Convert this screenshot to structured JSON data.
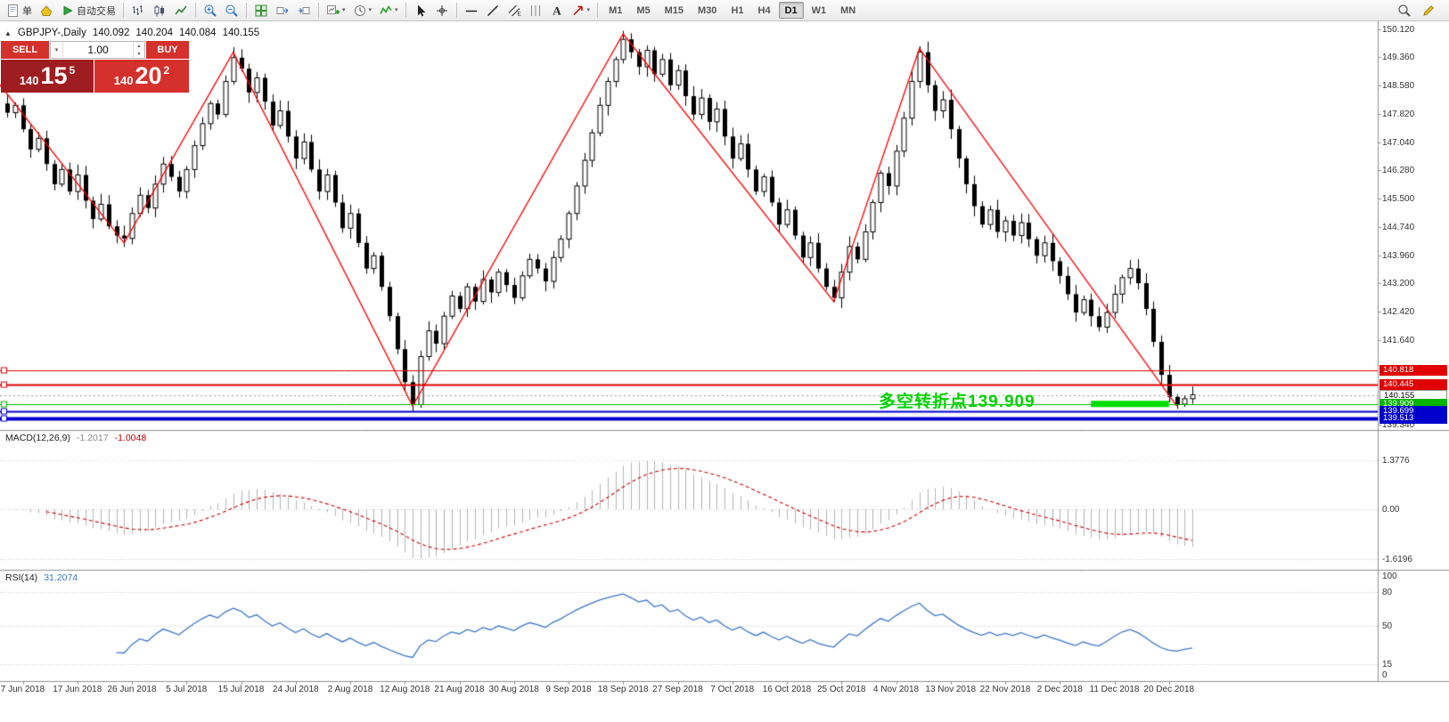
{
  "toolbar": {
    "caret_char": "▾",
    "groups": [
      {
        "items": [
          {
            "name": "new-order-button",
            "icon": "new-order",
            "label": "单"
          },
          {
            "name": "market-watch-button",
            "icon": "market-watch"
          },
          {
            "name": "auto-trading-button",
            "icon": "play",
            "label": "自动交易"
          }
        ]
      },
      {
        "items": [
          {
            "name": "bar-chart-button",
            "icon": "bars"
          },
          {
            "name": "candlestick-chart-button",
            "icon": "candles"
          },
          {
            "name": "line-chart-button",
            "icon": "line"
          }
        ]
      },
      {
        "items": [
          {
            "name": "zoom-in-button",
            "icon": "zoom-in"
          },
          {
            "name": "zoom-out-button",
            "icon": "zoom-out"
          }
        ]
      },
      {
        "items": [
          {
            "name": "tile-windows-button",
            "icon": "tile"
          },
          {
            "name": "auto-scroll-button",
            "icon": "auto-scroll"
          },
          {
            "name": "chart-shift-button",
            "icon": "chart-shift"
          }
        ]
      },
      {
        "items": [
          {
            "name": "new-chart-button",
            "icon": "new-chart",
            "caret": true
          },
          {
            "name": "periods-button",
            "icon": "clock",
            "caret": true
          },
          {
            "name": "indicators-button",
            "icon": "indicators",
            "caret": true
          }
        ]
      },
      {
        "items": [
          {
            "name": "cursor-button",
            "icon": "cursor"
          },
          {
            "name": "crosshair-button",
            "icon": "crosshair"
          }
        ]
      },
      {
        "items": [
          {
            "name": "horizontal-line-button",
            "icon": "hline"
          },
          {
            "name": "trendline-button",
            "icon": "trendline"
          },
          {
            "name": "equidistant-channel-button",
            "icon": "channel"
          },
          {
            "name": "cycle-lines-button",
            "icon": "cycle"
          },
          {
            "name": "text-label-button",
            "icon": "text"
          },
          {
            "name": "arrows-button",
            "icon": "arrow",
            "caret": true
          }
        ]
      }
    ],
    "timeframes": [
      "M1",
      "M5",
      "M15",
      "M30",
      "H1",
      "H4",
      "D1",
      "W1",
      "MN"
    ],
    "active_timeframe": "D1",
    "right_items": [
      {
        "name": "search-button",
        "icon": "search"
      },
      {
        "name": "chart-properties-button",
        "icon": "pencil"
      }
    ]
  },
  "chart": {
    "collapse_icon": "▲",
    "info": {
      "symbol": "GBPJPY-,Daily",
      "open": "140.092",
      "high": "140.204",
      "low": "140.084",
      "close": "140.155"
    },
    "trade_panel": {
      "sell_label": "SELL",
      "buy_label": "BUY",
      "volume": "1.00",
      "dropdown_icon": "▾",
      "spinner_up": "▴",
      "spinner_down": "▾",
      "sell_price": {
        "prefix": "140",
        "big": "15",
        "sup": "5"
      },
      "buy_price": {
        "prefix": "140",
        "big": "20",
        "sup": "2"
      }
    },
    "annotation": {
      "text": "多空转折点139.909",
      "color": "#00d200"
    },
    "price_scale": [
      "150.120",
      "149.360",
      "148.580",
      "147.820",
      "147.040",
      "146.280",
      "145.500",
      "144.740",
      "143.960",
      "143.200",
      "142.420",
      "141.640",
      "139.340"
    ],
    "price_tags": [
      {
        "text": "140.818",
        "price": 140.818,
        "bg": "#e00000",
        "fg": "#ffffff"
      },
      {
        "text": "140.445",
        "price": 140.445,
        "bg": "#e00000",
        "fg": "#ffffff"
      },
      {
        "text": "140.155",
        "price": 140.155,
        "bg": "#ffffff",
        "fg": "#000000",
        "border": "#909090"
      },
      {
        "text": "139.909",
        "price": 139.909,
        "bg": "#00b400",
        "fg": "#ffffff"
      },
      {
        "text": "139.699",
        "price": 139.699,
        "bg": "#0000cd",
        "fg": "#ffffff"
      },
      {
        "text": "139.513",
        "price": 139.513,
        "bg": "#0000cd",
        "fg": "#ffffff"
      }
    ]
  },
  "macd_label": {
    "name": "MACD(12,26,9)",
    "main": "-1.2017",
    "signal": "-1.0048"
  },
  "macd_scale": [
    "1.3776",
    "0.00",
    "-1.6196"
  ],
  "rsi_label": {
    "name": "RSI(14)",
    "value": "31.2074"
  },
  "rsi_scale": [
    "100",
    "80",
    "50",
    "15",
    "0"
  ],
  "time_axis": [
    "7 Jun 2018",
    "17 Jun 2018",
    "26 Jun 2018",
    "5 Jul 2018",
    "15 Jul 2018",
    "24 Jul 2018",
    "2 Aug 2018",
    "12 Aug 2018",
    "21 Aug 2018",
    "30 Aug 2018",
    "9 Sep 2018",
    "18 Sep 2018",
    "27 Sep 2018",
    "7 Oct 2018",
    "16 Oct 2018",
    "25 Oct 2018",
    "4 Nov 2018",
    "13 Nov 2018",
    "22 Nov 2018",
    "2 Dec 2018",
    "11 Dec 2018",
    "20 Dec 2018"
  ],
  "chart_data": {
    "type": "candlestick",
    "symbol": "GBPJPY-",
    "timeframe": "Daily",
    "quote": {
      "open": 140.092,
      "high": 140.204,
      "low": 140.084,
      "close": 140.155
    },
    "y_axis_range": [
      139.19,
      150.34
    ],
    "candles": {
      "closes": [
        147.85,
        148.05,
        147.4,
        146.85,
        147.15,
        146.45,
        145.9,
        146.3,
        145.7,
        146.15,
        145.45,
        144.95,
        145.35,
        144.75,
        144.5,
        144.42,
        145.1,
        145.6,
        145.25,
        145.9,
        146.45,
        146.1,
        145.7,
        146.3,
        146.95,
        147.55,
        148.1,
        147.8,
        148.7,
        149.35,
        149.05,
        148.4,
        148.8,
        148.15,
        147.5,
        147.9,
        147.2,
        146.6,
        147.05,
        146.3,
        145.7,
        146.15,
        145.4,
        144.7,
        145.1,
        144.3,
        143.6,
        143.95,
        143.1,
        142.3,
        141.4,
        140.5,
        139.89,
        141.2,
        141.9,
        141.55,
        142.3,
        142.85,
        142.5,
        143.1,
        142.7,
        143.3,
        142.95,
        143.5,
        143.15,
        142.8,
        143.4,
        143.85,
        143.6,
        143.25,
        143.9,
        144.4,
        145.1,
        145.85,
        146.55,
        147.3,
        148.05,
        148.7,
        149.3,
        149.85,
        149.5,
        149.1,
        149.55,
        148.9,
        149.3,
        148.6,
        149.0,
        148.3,
        147.8,
        148.25,
        147.6,
        147.95,
        147.2,
        146.6,
        147.0,
        146.3,
        145.7,
        146.1,
        145.4,
        144.8,
        145.2,
        144.5,
        143.9,
        144.3,
        143.6,
        143.1,
        142.8,
        143.5,
        144.2,
        143.85,
        144.6,
        145.4,
        146.2,
        145.85,
        146.8,
        147.7,
        148.7,
        149.5,
        148.6,
        147.9,
        148.2,
        147.4,
        146.6,
        145.9,
        145.3,
        144.8,
        145.2,
        144.6,
        144.9,
        144.5,
        144.85,
        144.4,
        143.95,
        144.3,
        143.8,
        143.4,
        142.9,
        142.4,
        142.75,
        142.3,
        142.0,
        142.4,
        142.9,
        143.35,
        143.6,
        143.2,
        142.5,
        141.6,
        140.7,
        140.1,
        139.9,
        140.05,
        140.155
      ]
    },
    "zigzag_pivots": [
      [
        -2,
        148.9
      ],
      [
        15,
        144.3
      ],
      [
        29,
        149.5
      ],
      [
        52,
        139.85
      ],
      [
        79,
        150.0
      ],
      [
        106,
        142.7
      ],
      [
        117,
        149.6
      ],
      [
        150,
        139.85
      ]
    ],
    "levels": [
      {
        "price": 140.818,
        "color": "#e00000",
        "width": 1,
        "style": "solid"
      },
      {
        "price": 140.445,
        "color": "#e00000",
        "width": 2,
        "style": "solid"
      },
      {
        "price": 140.155,
        "color": "#999999",
        "width": 1,
        "style": "dot"
      },
      {
        "price": 139.909,
        "color": "#00b400",
        "width": 1,
        "style": "solid"
      },
      {
        "price": 139.699,
        "color": "#0000cd",
        "width": 2,
        "style": "solid"
      },
      {
        "price": 139.513,
        "color": "#0000cd",
        "width": 4,
        "style": "solid"
      }
    ],
    "highlight_segment": {
      "from_index": 139,
      "to_index": 149,
      "price": 139.909,
      "color": "#00dd00",
      "thickness": 7
    },
    "indicators": [
      {
        "type": "MACD",
        "params": [
          12,
          26,
          9
        ],
        "current": [
          -1.2017,
          -1.0048
        ],
        "scale_range": [
          -1.6196,
          1.3776
        ],
        "histogram_color": "#b4b4b4",
        "signal_color": "#cc0000"
      },
      {
        "type": "RSI",
        "params": [
          14
        ],
        "current": 31.2074,
        "levels": [
          80,
          50,
          15
        ],
        "line_color": "#3d77c9"
      }
    ]
  }
}
